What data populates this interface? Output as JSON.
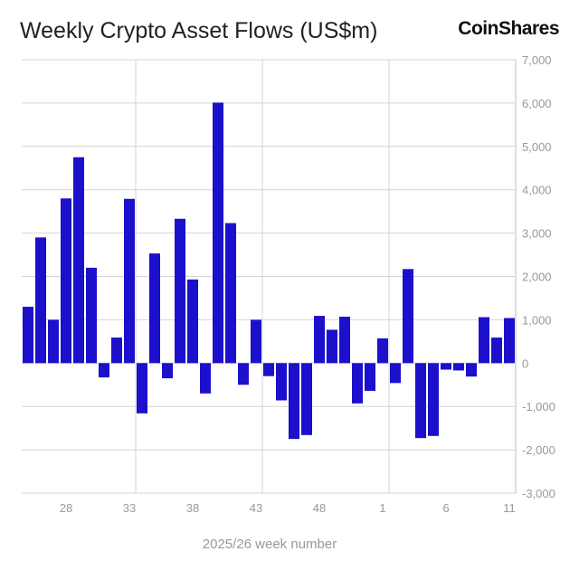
{
  "logo": "CoinShares",
  "chart_data": {
    "type": "bar",
    "title": "Weekly Crypto Asset Flows (US$m)",
    "xlabel": "2025/26 week number",
    "ylabel": "",
    "categories": [
      "25",
      "26",
      "27",
      "28",
      "29",
      "30",
      "31",
      "32",
      "33",
      "34",
      "35",
      "36",
      "37",
      "38",
      "39",
      "40",
      "41",
      "42",
      "43",
      "44",
      "45",
      "46",
      "47",
      "48",
      "49",
      "50",
      "51",
      "52",
      "1",
      "2",
      "3",
      "4",
      "5",
      "6",
      "7",
      "8",
      "9",
      "10",
      "11"
    ],
    "values": [
      1300,
      2900,
      1000,
      3800,
      4750,
      2200,
      -330,
      590,
      3790,
      -1160,
      2530,
      -350,
      3330,
      1930,
      -700,
      6010,
      3230,
      -500,
      1000,
      -300,
      -860,
      -1750,
      -1660,
      1090,
      770,
      1070,
      -930,
      -640,
      570,
      -460,
      2170,
      -1730,
      -1680,
      -150,
      -170,
      -310,
      1060,
      590,
      1040
    ],
    "ylim": [
      -3000,
      7000
    ],
    "yticks": [
      "7,000",
      "6,000",
      "5,000",
      "4,000",
      "3,000",
      "2,000",
      "1,000",
      "0",
      "-1,000",
      "-2,000",
      "-3,000"
    ],
    "xticks": [
      "28",
      "33",
      "38",
      "43",
      "48",
      "1",
      "6",
      "11"
    ],
    "y_axis_side": "right",
    "grid": true,
    "bar_color": "#1c10cc",
    "grid_color": "#d4d4d4"
  }
}
